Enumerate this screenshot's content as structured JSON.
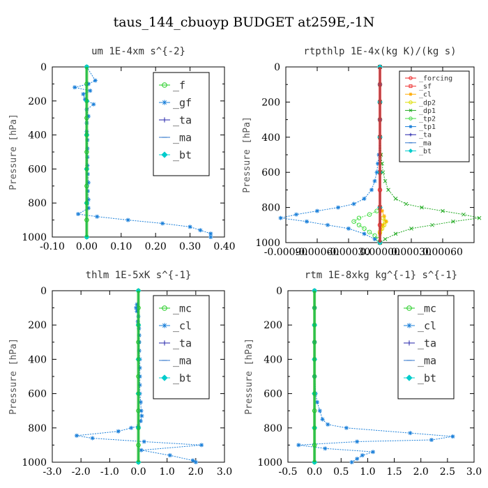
{
  "figure": {
    "title": "taus_144_cbuoyp  BUDGET at259E,-1N"
  },
  "chart_data": [
    {
      "type": "line",
      "title": "um  1E-4xm s^{-2}",
      "xlabel": "",
      "ylabel": "Pressure [hPa]",
      "xlim": [
        -0.1,
        0.4
      ],
      "ylim": [
        1000,
        0
      ],
      "xticks": [
        "-0.10",
        "0.00",
        "0.10",
        "0.20",
        "0.30",
        "0.40"
      ],
      "xtick_values": [
        -0.1,
        0.0,
        0.1,
        0.2,
        0.3,
        0.4
      ],
      "yticks": [
        "0",
        "200",
        "400",
        "600",
        "800",
        "1000"
      ],
      "ytick_values": [
        0,
        200,
        400,
        600,
        800,
        1000
      ],
      "legend": {
        "location": "top-right",
        "size": "large"
      },
      "series": [
        {
          "name": "_f",
          "color": "#22cc22",
          "marker": "circle",
          "y": [
            0,
            100,
            200,
            300,
            400,
            500,
            600,
            700,
            800,
            900,
            1000
          ],
          "x": [
            0,
            0,
            0,
            0,
            0,
            0,
            0,
            0,
            0,
            0,
            0
          ]
        },
        {
          "name": "_gf",
          "color": "#1a7fd9",
          "marker": "star",
          "y": [
            0,
            80,
            100,
            120,
            140,
            160,
            190,
            220,
            250,
            290,
            330,
            380,
            430,
            480,
            530,
            580,
            630,
            680,
            730,
            780,
            830,
            865,
            880,
            900,
            920,
            940,
            960,
            980,
            1000
          ],
          "x": [
            0,
            0.025,
            0.005,
            -0.035,
            0.01,
            -0.01,
            -0.005,
            0.02,
            0.0,
            0.005,
            0.0,
            0.0,
            0.002,
            0.002,
            0.002,
            0.002,
            0.003,
            0.005,
            0.003,
            0.005,
            0.005,
            -0.025,
            0.03,
            0.12,
            0.22,
            0.3,
            0.33,
            0.36,
            0.36
          ]
        },
        {
          "name": "_ta",
          "color": "#2222aa",
          "marker": "plus",
          "y": [
            0,
            200,
            400,
            600,
            800,
            1000
          ],
          "x": [
            0,
            0,
            0,
            0,
            0,
            0
          ]
        },
        {
          "name": "_ma",
          "color": "#3377cc",
          "marker": "dash",
          "y": [
            0,
            200,
            400,
            600,
            800,
            1000
          ],
          "x": [
            0,
            0,
            0,
            0,
            0,
            0
          ]
        },
        {
          "name": "_bt",
          "color": "#00cccc",
          "marker": "diamond",
          "y": [
            0,
            200,
            400,
            600,
            800,
            1000
          ],
          "x": [
            0,
            0,
            0,
            0,
            0,
            0
          ]
        }
      ]
    },
    {
      "type": "line",
      "title": "rtpthlp  1E-4x(kg K)/(kg s)",
      "xlabel": "",
      "ylabel": "Pressure [hPa]",
      "xlim": [
        -0.0009,
        0.0009
      ],
      "ylim": [
        1000,
        0
      ],
      "xticks": [
        "-0.00090",
        "-0.00060",
        "-0.00030",
        "0.00000",
        "0.00030",
        "0.00060"
      ],
      "xtick_values": [
        -0.0009,
        -0.0006,
        -0.0003,
        0.0,
        0.0003,
        0.0006
      ],
      "yticks": [
        "0",
        "200",
        "400",
        "600",
        "800",
        "1000"
      ],
      "ytick_values": [
        0,
        200,
        400,
        600,
        800,
        1000
      ],
      "legend": {
        "location": "top-right",
        "size": "small"
      },
      "series": [
        {
          "name": "_forcing",
          "color": "#ee2222",
          "marker": "circle",
          "y": [
            0,
            100,
            200,
            300,
            400,
            500,
            600,
            700,
            800,
            900,
            1000
          ],
          "x": [
            0,
            0,
            0,
            0,
            0,
            0,
            0,
            0,
            0,
            0,
            0
          ]
        },
        {
          "name": "_sf",
          "color": "#ee3333",
          "marker": "square",
          "y": [
            0,
            200,
            400,
            600,
            800,
            1000
          ],
          "x": [
            0,
            0,
            0,
            0,
            0,
            0
          ]
        },
        {
          "name": "_cl",
          "color": "#ffaa00",
          "marker": "star",
          "y": [
            820,
            850,
            880,
            900,
            920,
            950
          ],
          "x": [
            2e-05,
            4e-05,
            6e-05,
            3e-05,
            1e-05,
            0.0
          ]
        },
        {
          "name": "_dp2",
          "color": "#dddd00",
          "marker": "circle",
          "y": [
            860,
            880,
            900,
            920,
            940
          ],
          "x": [
            3e-05,
            5e-05,
            4e-05,
            2e-05,
            0.0
          ]
        },
        {
          "name": "_dp1",
          "color": "#22aa22",
          "marker": "cross",
          "y": [
            0,
            100,
            200,
            300,
            400,
            500,
            550,
            600,
            650,
            700,
            750,
            780,
            800,
            820,
            840,
            860,
            880,
            900,
            920,
            950,
            980,
            1000
          ],
          "x": [
            0,
            0,
            0,
            0,
            0,
            1e-05,
            2e-05,
            3e-05,
            5e-05,
            8e-05,
            0.00015,
            0.00025,
            0.0004,
            0.0006,
            0.0008,
            0.00095,
            0.0007,
            0.0005,
            0.0003,
            0.00015,
            5e-05,
            0.0
          ]
        },
        {
          "name": "_tp2",
          "color": "#44dd44",
          "marker": "circle",
          "y": [
            820,
            840,
            860,
            880,
            900,
            920,
            940,
            960,
            980,
            1000
          ],
          "x": [
            -3e-05,
            -0.0001,
            -0.0002,
            -0.00025,
            -0.0002,
            -0.00015,
            -0.0001,
            -5e-05,
            -2e-05,
            0.0
          ]
        },
        {
          "name": "_tp1",
          "color": "#1a7fd9",
          "marker": "star",
          "y": [
            0,
            100,
            200,
            300,
            400,
            500,
            550,
            600,
            650,
            700,
            750,
            780,
            800,
            820,
            840,
            860,
            880,
            900,
            920,
            950,
            980,
            1000
          ],
          "x": [
            0,
            0,
            0,
            0,
            0,
            -1e-05,
            -2e-05,
            -3e-05,
            -5e-05,
            -8e-05,
            -0.00015,
            -0.00025,
            -0.0004,
            -0.0006,
            -0.0008,
            -0.00095,
            -0.0007,
            -0.0005,
            -0.0003,
            -0.00015,
            -5e-05,
            0.0
          ]
        },
        {
          "name": "_ta",
          "color": "#2222aa",
          "marker": "plus",
          "y": [
            0,
            200,
            400,
            600,
            800,
            1000
          ],
          "x": [
            0,
            0,
            0,
            0,
            0,
            0
          ]
        },
        {
          "name": "_ma",
          "color": "#3377cc",
          "marker": "dash",
          "y": [
            0,
            200,
            400,
            600,
            800,
            1000
          ],
          "x": [
            0,
            0,
            0,
            0,
            0,
            0
          ]
        },
        {
          "name": "_bt",
          "color": "#00cccc",
          "marker": "diamond",
          "y": [
            0,
            200,
            400,
            600,
            800,
            1000
          ],
          "x": [
            0,
            0,
            0,
            0,
            0,
            0
          ]
        }
      ]
    },
    {
      "type": "line",
      "title": "thlm  1E-5xK  s^{-1}",
      "xlabel": "",
      "ylabel": "Pressure [hPa]",
      "xlim": [
        -3.0,
        3.0
      ],
      "ylim": [
        1000,
        0
      ],
      "xticks": [
        "-3.0",
        "-2.0",
        "-1.0",
        "0.0",
        "1.0",
        "2.0",
        "3.0"
      ],
      "xtick_values": [
        -3,
        -2,
        -1,
        0,
        1,
        2,
        3
      ],
      "yticks": [
        "0",
        "200",
        "400",
        "600",
        "800",
        "1000"
      ],
      "ytick_values": [
        0,
        200,
        400,
        600,
        800,
        1000
      ],
      "legend": {
        "location": "top-right",
        "size": "large"
      },
      "series": [
        {
          "name": "_mc",
          "color": "#22cc22",
          "marker": "circle",
          "y": [
            0,
            100,
            200,
            300,
            400,
            500,
            600,
            700,
            800,
            900,
            1000
          ],
          "x": [
            0,
            0,
            0,
            0,
            0,
            0,
            0,
            0,
            0,
            0,
            0
          ]
        },
        {
          "name": "_cl",
          "color": "#1a7fd9",
          "marker": "star",
          "y": [
            80,
            100,
            120,
            150,
            180,
            220,
            260,
            300,
            350,
            400,
            450,
            500,
            550,
            600,
            650,
            700,
            730,
            760,
            790,
            800,
            820,
            845,
            860,
            880,
            900,
            930,
            960,
            990,
            1000
          ],
          "x": [
            -0.05,
            -0.08,
            -0.05,
            0.0,
            -0.02,
            0.02,
            0.03,
            0.03,
            0.03,
            0.05,
            0.05,
            0.05,
            0.05,
            0.05,
            0.08,
            0.1,
            0.12,
            0.08,
            0.0,
            -0.25,
            -0.7,
            -2.15,
            -1.6,
            0.2,
            2.2,
            0.1,
            1.1,
            1.9,
            2.0
          ]
        },
        {
          "name": "_ta",
          "color": "#2222aa",
          "marker": "plus",
          "y": [
            0,
            200,
            400,
            600,
            800,
            1000
          ],
          "x": [
            0,
            0,
            0,
            0,
            0,
            0
          ]
        },
        {
          "name": "_ma",
          "color": "#3377cc",
          "marker": "dash",
          "y": [
            0,
            200,
            400,
            600,
            800,
            1000
          ],
          "x": [
            0,
            0,
            0,
            0,
            0,
            0
          ]
        },
        {
          "name": "_bt",
          "color": "#00cccc",
          "marker": "diamond",
          "y": [
            0,
            200,
            400,
            600,
            800,
            1000
          ],
          "x": [
            0,
            0,
            0,
            0,
            0,
            0
          ]
        }
      ]
    },
    {
      "type": "line",
      "title": "rtm  1E-8xkg kg^{-1} s^{-1}",
      "xlabel": "",
      "ylabel": "Pressure [hPa]",
      "xlim": [
        -0.5,
        3.0
      ],
      "ylim": [
        1000,
        0
      ],
      "xticks": [
        "-0.5",
        "0.0",
        "0.5",
        "1.0",
        "1.5",
        "2.0",
        "2.5",
        "3.0"
      ],
      "xtick_values": [
        -0.5,
        0,
        0.5,
        1,
        1.5,
        2,
        2.5,
        3
      ],
      "yticks": [
        "0",
        "200",
        "400",
        "600",
        "800",
        "1000"
      ],
      "ytick_values": [
        0,
        200,
        400,
        600,
        800,
        1000
      ],
      "legend": {
        "location": "top-right",
        "size": "large"
      },
      "series": [
        {
          "name": "_mc",
          "color": "#22cc22",
          "marker": "circle",
          "y": [
            0,
            100,
            200,
            300,
            400,
            500,
            600,
            700,
            800,
            900,
            1000
          ],
          "x": [
            0,
            0,
            0,
            0,
            0,
            0,
            0,
            0,
            0,
            0,
            0
          ]
        },
        {
          "name": "_cl",
          "color": "#1a7fd9",
          "marker": "star",
          "y": [
            0,
            100,
            200,
            300,
            400,
            500,
            600,
            650,
            700,
            750,
            780,
            800,
            830,
            850,
            870,
            880,
            900,
            920,
            940,
            960,
            980,
            1000
          ],
          "x": [
            0,
            0,
            0,
            0,
            0,
            0,
            0.02,
            0.05,
            0.1,
            0.15,
            0.25,
            0.6,
            1.8,
            2.6,
            2.2,
            0.8,
            -0.3,
            0.2,
            1.1,
            0.9,
            0.8,
            0.7
          ]
        },
        {
          "name": "_ta",
          "color": "#2222aa",
          "marker": "plus",
          "y": [
            0,
            200,
            400,
            600,
            800,
            1000
          ],
          "x": [
            0,
            0,
            0,
            0,
            0,
            0
          ]
        },
        {
          "name": "_ma",
          "color": "#3377cc",
          "marker": "dash",
          "y": [
            0,
            200,
            400,
            600,
            800,
            1000
          ],
          "x": [
            0,
            0,
            0,
            0,
            0,
            0
          ]
        },
        {
          "name": "_bt",
          "color": "#00cccc",
          "marker": "diamond",
          "y": [
            0,
            200,
            400,
            600,
            800,
            1000
          ],
          "x": [
            0,
            0,
            0,
            0,
            0,
            0
          ]
        }
      ]
    }
  ]
}
